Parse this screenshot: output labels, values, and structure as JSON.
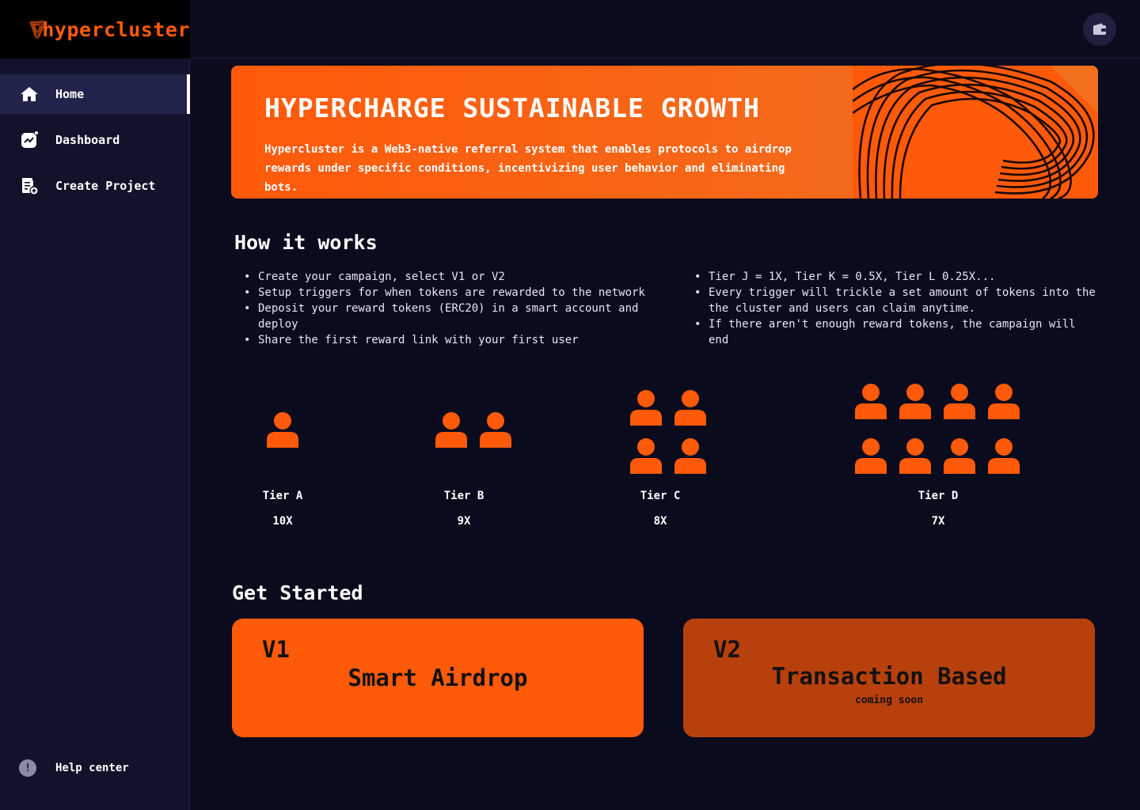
{
  "brand": {
    "name": "hypercluster",
    "accent": "#ff5a0a"
  },
  "sidebar": {
    "items": [
      {
        "label": "Home",
        "icon": "home-icon",
        "active": true
      },
      {
        "label": "Dashboard",
        "icon": "chart-icon",
        "active": false
      },
      {
        "label": "Create Project",
        "icon": "document-add-icon",
        "active": false
      }
    ],
    "help": {
      "label": "Help center",
      "icon": "info-icon",
      "glyph": "!"
    }
  },
  "header": {
    "wallet_icon": "wallet-icon"
  },
  "hero": {
    "title": "HYPERCHARGE SUSTAINABLE GROWTH",
    "description": "Hypercluster is a Web3-native referral system that enables protocols to airdrop rewards under specific conditions, incentivizing user behavior and eliminating bots."
  },
  "how_it_works": {
    "title": "How it works",
    "left": [
      "Create your campaign, select V1 or V2",
      "Setup triggers for when tokens are rewarded to the network",
      "Deposit your reward tokens (ERC20) in a smart account and deploy",
      "Share the first reward link with your first user"
    ],
    "right": [
      "Tier J = 1X, Tier K = 0.5X, Tier L 0.25X...",
      "Every trigger will trickle a set amount of tokens into the the cluster and users can claim anytime.",
      "If there aren't enough reward tokens, the campaign will end"
    ]
  },
  "tiers": [
    {
      "name": "Tier A",
      "multiplier": "10X",
      "users": 1
    },
    {
      "name": "Tier B",
      "multiplier": "9X",
      "users": 2
    },
    {
      "name": "Tier C",
      "multiplier": "8X",
      "users": 4
    },
    {
      "name": "Tier D",
      "multiplier": "7X",
      "users": 8
    }
  ],
  "get_started": {
    "title": "Get Started",
    "cards": [
      {
        "version": "V1",
        "title": "Smart Airdrop",
        "subtitle": ""
      },
      {
        "version": "V2",
        "title": "Transaction Based",
        "subtitle": "coming soon"
      }
    ]
  }
}
